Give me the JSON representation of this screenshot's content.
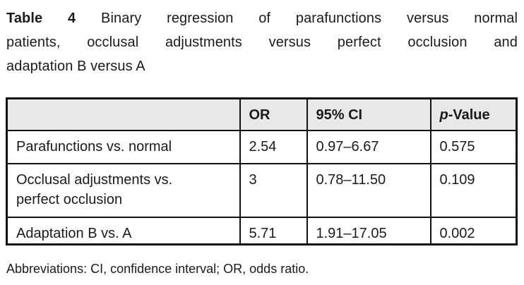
{
  "title": {
    "label": "Table 4",
    "line1_rest": "Binary regression of parafunctions versus normal",
    "line2": "patients, occlusal adjustments versus perfect occlusion and",
    "line3": "adaptation B versus A"
  },
  "table": {
    "col_or": "OR",
    "col_ci": "95% CI",
    "col_p_italic": "p",
    "col_p_rest": "-Value",
    "rows": [
      {
        "label": "Parafunctions vs. normal",
        "or": "2.54",
        "ci": "0.97–6.67",
        "p": "0.575"
      },
      {
        "label": "Occlusal adjustments vs. perfect occlusion",
        "or": "3",
        "ci": "0.78–11.50",
        "p": "0.109"
      },
      {
        "label": "Adaptation B vs. A",
        "or": "5.71",
        "ci": "1.91–17.05",
        "p": "0.002"
      }
    ]
  },
  "footnote": "Abbreviations: CI, confidence interval; OR, odds ratio.",
  "colors": {
    "header_bg": "#e8e8e8",
    "border": "#111111",
    "text": "#1b1b1b",
    "background": "#ffffff"
  }
}
